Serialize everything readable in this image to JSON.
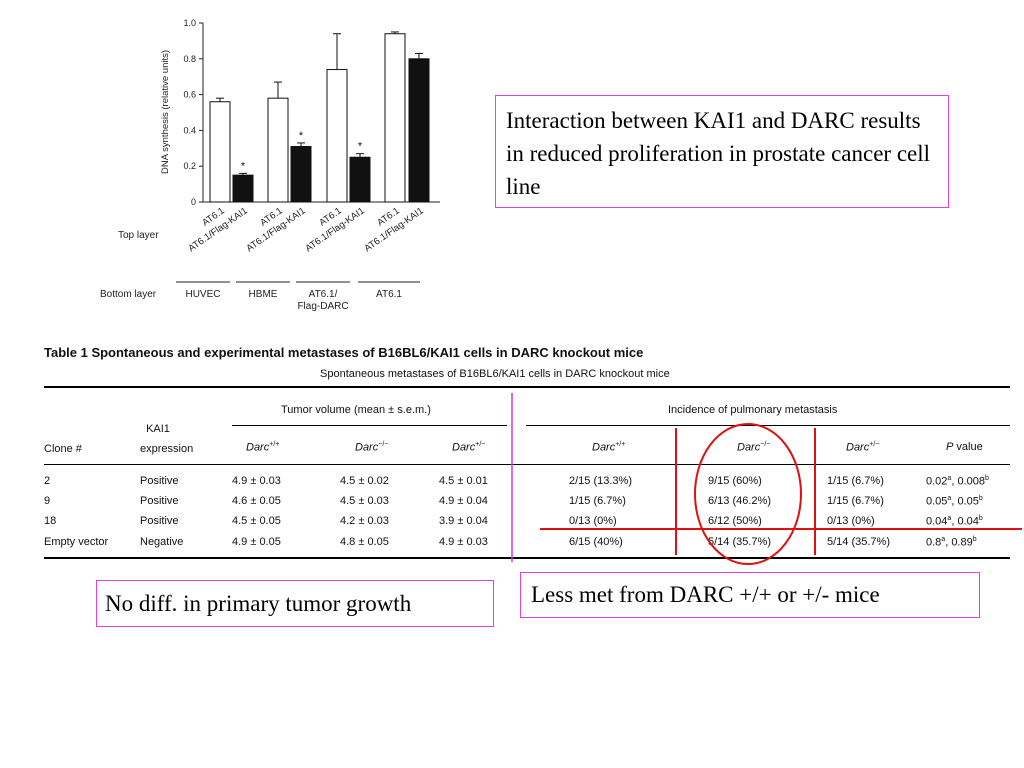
{
  "chart_data": {
    "type": "bar",
    "ylabel": "DNA synthesis (relative units)",
    "ylim": [
      0,
      1.0
    ],
    "yticks": [
      "0",
      "0.2",
      "0.4",
      "0.6",
      "0.8",
      "1.0"
    ],
    "categories": [
      "AT6.1",
      "AT6.1/Flag-KAI1",
      "AT6.1",
      "AT6.1/Flag-KAI1",
      "AT6.1",
      "AT6.1/Flag-KAI1",
      "AT6.1",
      "AT6.1/Flag-KAI1"
    ],
    "values": [
      0.56,
      0.15,
      0.58,
      0.31,
      0.74,
      0.25,
      0.94,
      0.8
    ],
    "errors": [
      0.02,
      0.01,
      0.09,
      0.02,
      0.2,
      0.02,
      0.01,
      0.03
    ],
    "fills": [
      "#ffffff",
      "#111111",
      "#ffffff",
      "#111111",
      "#ffffff",
      "#111111",
      "#ffffff",
      "#111111"
    ],
    "significant": [
      false,
      true,
      false,
      true,
      false,
      true,
      false,
      false
    ],
    "top_layer_label": "Top layer",
    "bottom_layer_label": "Bottom layer",
    "bottom_groups": [
      "HUVEC",
      "HBME",
      "AT6.1/ Flag-DARC",
      "AT6.1"
    ],
    "star": "*"
  },
  "callouts": {
    "interaction": "Interaction between KAI1 and DARC results in reduced proliferation in prostate cancer cell line",
    "growth": "No diff. in primary tumor growth",
    "met": "Less met from DARC  +/+ or +/- mice"
  },
  "table": {
    "title": "Table 1  Spontaneous and experimental metastases of B16BL6/KAI1 cells in DARC knockout mice",
    "subtitle": "Spontaneous metastases of B16BL6/KAI1 cells in DARC knockout mice",
    "col_clone": "Clone #",
    "col_kai1_a": "KAI1",
    "col_kai1_b": "expression",
    "tumor_volume": "Tumor volume (mean ± s.e.m.)",
    "incidence": "Incidence of pulmonary metastasis",
    "darc_pp": "Darc",
    "sup_pp": "+/+",
    "sup_mm": "−/−",
    "sup_pm": "+/−",
    "pvalue_p": "P",
    "pvalue_rest": " value",
    "rows": [
      {
        "clone": "2",
        "expr": "Positive",
        "v1": "4.9 ± 0.03",
        "v2": "4.5 ± 0.02",
        "v3": "4.5 ± 0.01",
        "i1": "2/15 (13.3%)",
        "i2": "9/15 (60%)",
        "i3": "1/15 (6.7%)",
        "p1": "0.02",
        "s1": "a",
        "p2": ", 0.008",
        "s2": "b"
      },
      {
        "clone": "9",
        "expr": "Positive",
        "v1": "4.6 ± 0.05",
        "v2": "4.5 ± 0.03",
        "v3": "4.9 ± 0.04",
        "i1": "1/15 (6.7%)",
        "i2": "6/13 (46.2%)",
        "i3": "1/15 (6.7%)",
        "p1": "0.05",
        "s1": "a",
        "p2": ", 0.05",
        "s2": "b"
      },
      {
        "clone": "18",
        "expr": "Positive",
        "v1": "4.5 ± 0.05",
        "v2": "4.2 ± 0.03",
        "v3": "3.9 ± 0.04",
        "i1": "0/13 (0%)",
        "i2": "6/12 (50%)",
        "i3": "0/13 (0%)",
        "p1": "0.04",
        "s1": "a",
        "p2": ", 0.04",
        "s2": "b"
      },
      {
        "clone": "Empty vector",
        "expr": "Negative",
        "v1": "4.9 ± 0.05",
        "v2": "4.8 ± 0.05",
        "v3": "4.9 ± 0.03",
        "i1": "6/15 (40%)",
        "i2": "5/14 (35.7%)",
        "i3": "5/14 (35.7%)",
        "p1": "0.8",
        "s1": "a",
        "p2": ", 0.89",
        "s2": "b"
      }
    ]
  },
  "colors": {
    "annotation_red": "#e01010",
    "callout_border": "#e040e0",
    "divider_purple": "#c040e0"
  }
}
